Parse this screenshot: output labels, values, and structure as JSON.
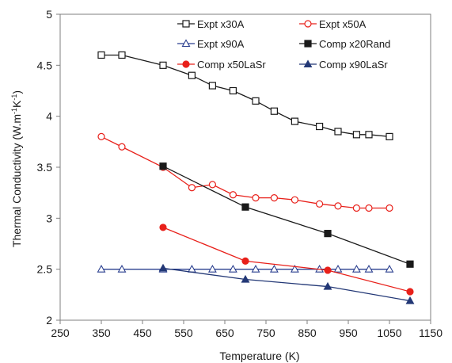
{
  "chart_data": {
    "type": "line",
    "title": "",
    "xlabel": "Temperature (K)",
    "ylabel": "Thermal Conductivity (W.m",
    "ylabel_sup1": "-1",
    "ylabel_mid": "K",
    "ylabel_sup2": "-1",
    "ylabel_end": ")",
    "xlim": [
      250,
      1150
    ],
    "ylim": [
      2,
      5
    ],
    "xticks": [
      250,
      350,
      450,
      550,
      650,
      750,
      850,
      950,
      1050,
      1150
    ],
    "yticks": [
      2,
      2.5,
      3,
      3.5,
      4,
      4.5,
      5
    ],
    "ytick_labels": [
      "2",
      "2.5",
      "3",
      "3.5",
      "4",
      "4.5",
      "5"
    ],
    "grid": false,
    "legend_position": "top-right",
    "series": [
      {
        "name": "Expt x30A",
        "color": "#1a1a1a",
        "marker": "square-open",
        "x": [
          350,
          400,
          500,
          570,
          620,
          670,
          725,
          770,
          820,
          880,
          925,
          970,
          1000,
          1050
        ],
        "y": [
          4.6,
          4.6,
          4.5,
          4.4,
          4.3,
          4.25,
          4.15,
          4.05,
          3.95,
          3.9,
          3.85,
          3.82,
          3.82,
          3.8
        ]
      },
      {
        "name": "Expt x50A",
        "color": "#e8201a",
        "marker": "circle-open",
        "x": [
          350,
          400,
          500,
          570,
          620,
          670,
          725,
          770,
          820,
          880,
          925,
          970,
          1000,
          1050
        ],
        "y": [
          3.8,
          3.7,
          3.5,
          3.3,
          3.33,
          3.23,
          3.2,
          3.2,
          3.18,
          3.14,
          3.12,
          3.1,
          3.1,
          3.1
        ]
      },
      {
        "name": "Expt x90A",
        "color": "#2a3f8f",
        "marker": "triangle-open",
        "x": [
          350,
          400,
          500,
          570,
          620,
          670,
          725,
          770,
          820,
          880,
          925,
          970,
          1000,
          1050
        ],
        "y": [
          2.5,
          2.5,
          2.5,
          2.5,
          2.5,
          2.5,
          2.5,
          2.5,
          2.5,
          2.5,
          2.5,
          2.5,
          2.5,
          2.5
        ]
      },
      {
        "name": "Comp x20Rand",
        "color": "#1a1a1a",
        "marker": "square-filled",
        "x": [
          500,
          700,
          900,
          1100
        ],
        "y": [
          3.51,
          3.11,
          2.85,
          2.55
        ]
      },
      {
        "name": "Comp x50LaSr",
        "color": "#e8201a",
        "marker": "circle-filled",
        "x": [
          500,
          700,
          900,
          1100
        ],
        "y": [
          2.91,
          2.58,
          2.49,
          2.28
        ]
      },
      {
        "name": "Comp x90LaSr",
        "color": "#233876",
        "marker": "triangle-filled",
        "x": [
          500,
          700,
          900,
          1100
        ],
        "y": [
          2.51,
          2.4,
          2.33,
          2.19
        ]
      }
    ]
  }
}
